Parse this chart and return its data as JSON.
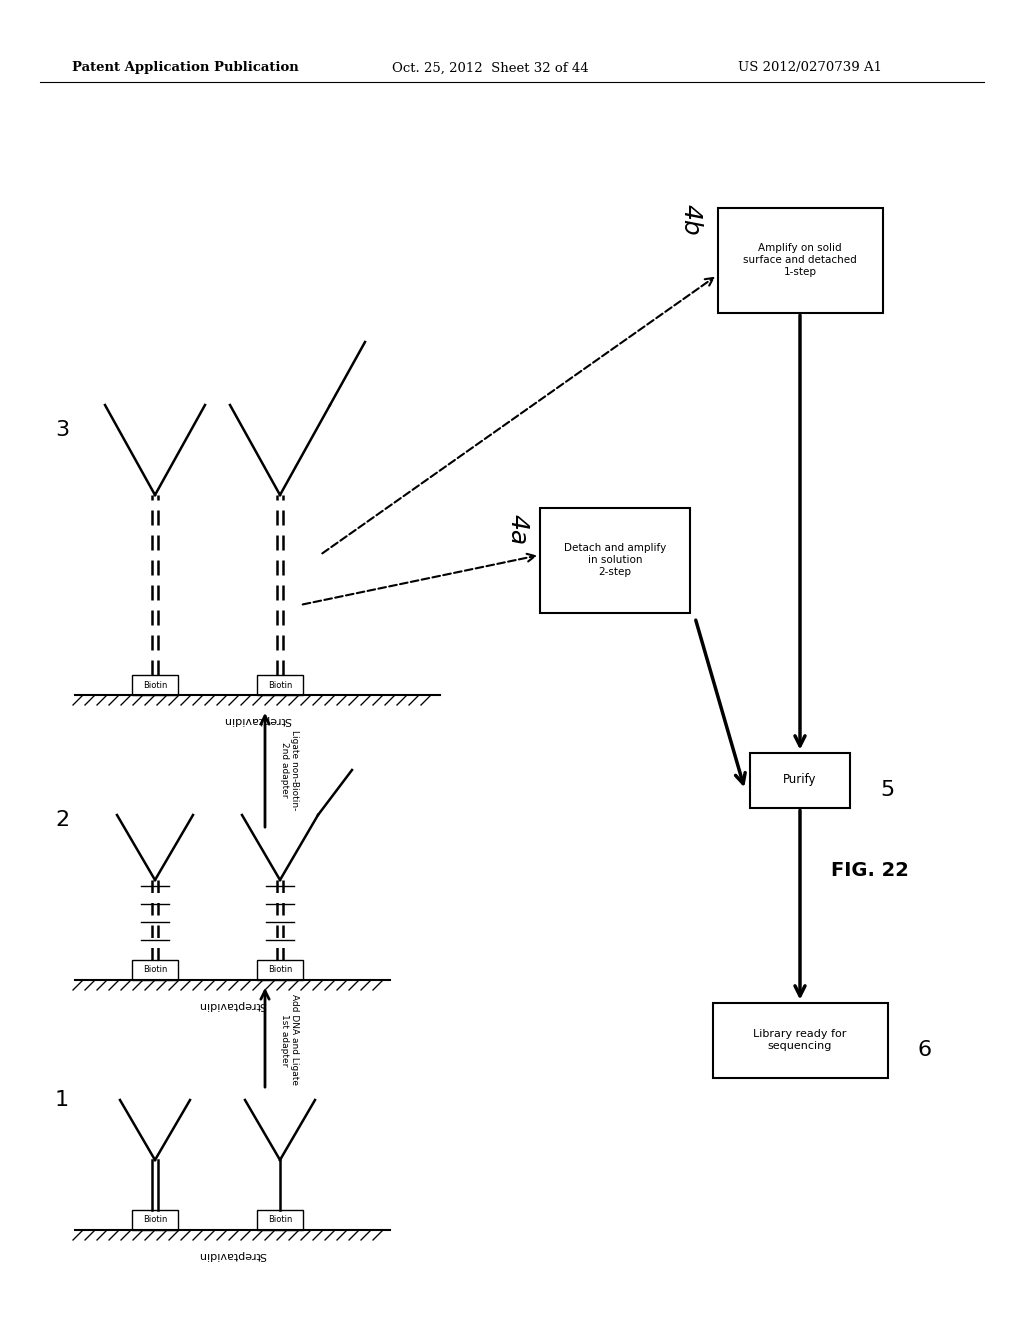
{
  "title_left": "Patent Application Publication",
  "title_mid": "Oct. 25, 2012  Sheet 32 of 44",
  "title_right": "US 2012/0270739 A1",
  "fig_label": "FIG. 22",
  "bg_color": "#ffffff",
  "arrow_label_1": "Add DNA and Ligate\n1st adapter",
  "arrow_label_2": "Ligate non-Biotin-\n2nd adapter",
  "box_4b": "Amplify on solid\nsurface and detached\n1-step",
  "box_4a": "Detach and amplify\nin solution\n2-step",
  "box_5": "Purify",
  "box_6": "Library ready for\nsequencing",
  "biotin_label": "Biotin",
  "streptavidin_label": "Streptavidin"
}
